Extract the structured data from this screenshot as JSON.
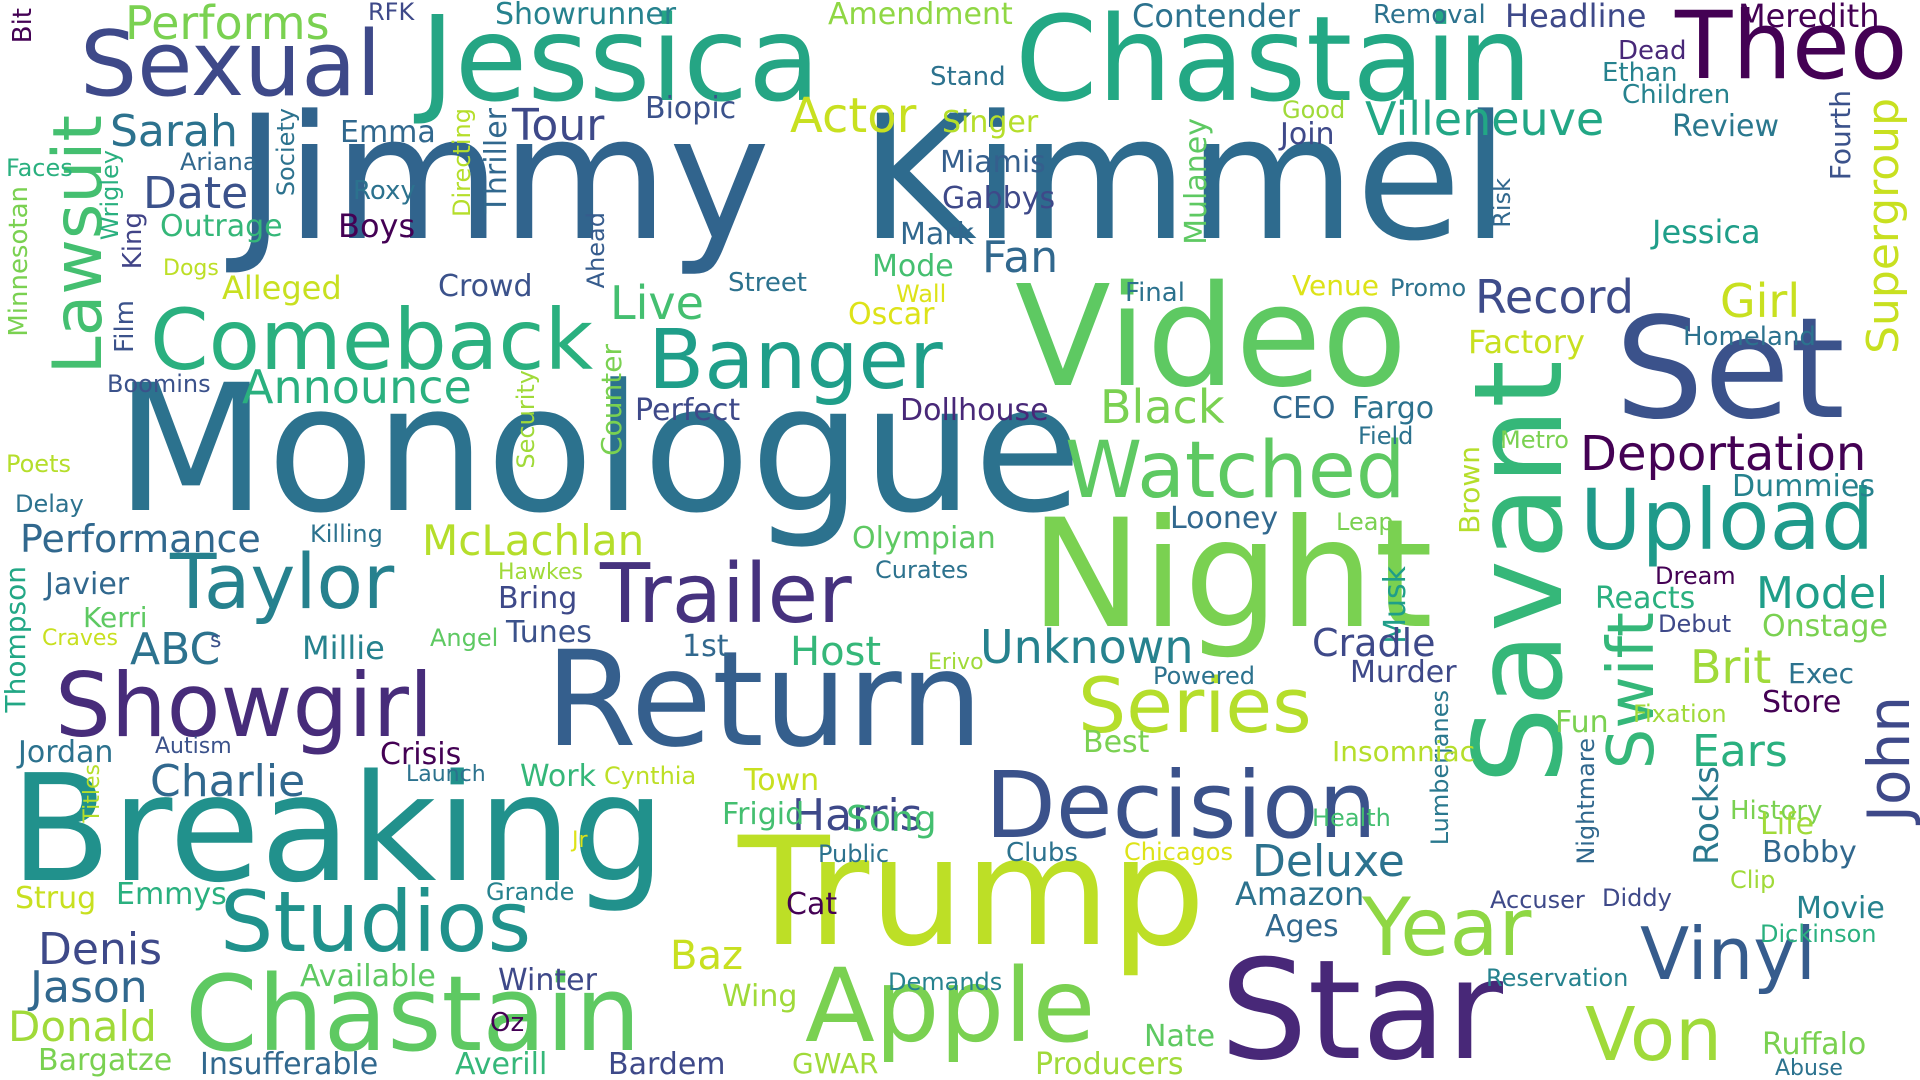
{
  "word_cloud": {
    "background": "#ffffff",
    "palette": "viridis",
    "words": [
      {
        "text": "Jimmy",
        "color": "#31648d"
      },
      {
        "text": "Kimmel",
        "color": "#2e6b8e"
      },
      {
        "text": "Jessica",
        "color": "#25a584"
      },
      {
        "text": "Chastain",
        "color": "#23a884"
      },
      {
        "text": "Theo",
        "color": "#440154"
      },
      {
        "text": "Sexual",
        "color": "#3e4989"
      },
      {
        "text": "Monologue",
        "color": "#2c728e"
      },
      {
        "text": "Video",
        "color": "#5ec962"
      },
      {
        "text": "Set",
        "color": "#3b528b"
      },
      {
        "text": "Night",
        "color": "#7ad151"
      },
      {
        "text": "Return",
        "color": "#355f8d"
      },
      {
        "text": "Breaking",
        "color": "#21918c"
      },
      {
        "text": "Trump",
        "color": "#bddf26"
      },
      {
        "text": "Star",
        "color": "#482878"
      },
      {
        "text": "Savant",
        "color": "#35b779"
      },
      {
        "text": "Apple",
        "color": "#7ad151"
      },
      {
        "text": "Chastain",
        "color": "#5ec962"
      },
      {
        "text": "Showgirl",
        "color": "#472c7a"
      },
      {
        "text": "Decision",
        "color": "#3b528b"
      },
      {
        "text": "Comeback",
        "color": "#2ab07f"
      },
      {
        "text": "Banger",
        "color": "#1f9e89"
      },
      {
        "text": "Watched",
        "color": "#5ec962"
      },
      {
        "text": "Upload",
        "color": "#1f9a8a"
      },
      {
        "text": "Lawsuit",
        "color": "#44bf70"
      },
      {
        "text": "Trailer",
        "color": "#46327e"
      },
      {
        "text": "Taylor",
        "color": "#26818e"
      },
      {
        "text": "Studios",
        "color": "#20928c"
      },
      {
        "text": "Series",
        "color": "#b5de2b"
      },
      {
        "text": "Swift",
        "color": "#35b779"
      },
      {
        "text": "John",
        "color": "#3e4989"
      },
      {
        "text": "Vinyl",
        "color": "#365c8d"
      },
      {
        "text": "Year",
        "color": "#8fd744"
      },
      {
        "text": "Von",
        "color": "#9fda3a"
      },
      {
        "text": "Deportation",
        "color": "#440154"
      },
      {
        "text": "Record",
        "color": "#3e4c8a"
      },
      {
        "text": "Supergroup",
        "color": "#c8e020"
      },
      {
        "text": "Villeneuve",
        "color": "#22a785"
      },
      {
        "text": "Performs",
        "color": "#7ad151"
      },
      {
        "text": "RFK",
        "color": "#3e4989"
      },
      {
        "text": "Showrunner",
        "color": "#26828e"
      },
      {
        "text": "Amendment",
        "color": "#8fd744"
      },
      {
        "text": "Contender",
        "color": "#2c728e"
      },
      {
        "text": "Removal",
        "color": "#2c728e"
      },
      {
        "text": "Headline",
        "color": "#3e4989"
      },
      {
        "text": "Meredith",
        "color": "#440154"
      },
      {
        "text": "Bit",
        "color": "#440154"
      },
      {
        "text": "Stand",
        "color": "#2c728e"
      },
      {
        "text": "Dead",
        "color": "#482878"
      },
      {
        "text": "Ethan",
        "color": "#26828e"
      },
      {
        "text": "Children",
        "color": "#26828e"
      },
      {
        "text": "Sarah",
        "color": "#2c728e"
      },
      {
        "text": "Emma",
        "color": "#31688e"
      },
      {
        "text": "Tour",
        "color": "#3e4989"
      },
      {
        "text": "Biopic",
        "color": "#3b528b"
      },
      {
        "text": "Actor",
        "color": "#c8e020"
      },
      {
        "text": "Singer",
        "color": "#b5de2b"
      },
      {
        "text": "Good",
        "color": "#a0da39"
      },
      {
        "text": "Join",
        "color": "#3e4989"
      },
      {
        "text": "Review",
        "color": "#2a788e"
      },
      {
        "text": "Fourth",
        "color": "#3b528b"
      },
      {
        "text": "Faces",
        "color": "#2ab07f"
      },
      {
        "text": "Ariana",
        "color": "#31688e"
      },
      {
        "text": "Society",
        "color": "#2c728e"
      },
      {
        "text": "Date",
        "color": "#3b528b"
      },
      {
        "text": "Roxy",
        "color": "#2c728e"
      },
      {
        "text": "Miamis",
        "color": "#355f8d"
      },
      {
        "text": "Mulaney",
        "color": "#5ec962"
      },
      {
        "text": "Risk",
        "color": "#31688e"
      },
      {
        "text": "Jessica",
        "color": "#1f9e89"
      },
      {
        "text": "Outrage",
        "color": "#35b779"
      },
      {
        "text": "Boys",
        "color": "#440154"
      },
      {
        "text": "Directing",
        "color": "#b5de2b"
      },
      {
        "text": "Thriller",
        "color": "#31688e"
      },
      {
        "text": "Gabbys",
        "color": "#3e4989"
      },
      {
        "text": "Wrigley",
        "color": "#2ab07f"
      },
      {
        "text": "King",
        "color": "#414487"
      },
      {
        "text": "Mark",
        "color": "#31688e"
      },
      {
        "text": "Ahead",
        "color": "#365c8d"
      },
      {
        "text": "Minnesotan",
        "color": "#7ad151"
      },
      {
        "text": "Dogs",
        "color": "#bddf26"
      },
      {
        "text": "Alleged",
        "color": "#c8e020"
      },
      {
        "text": "Mode",
        "color": "#44bf70"
      },
      {
        "text": "Fan",
        "color": "#31688e"
      },
      {
        "text": "Crowd",
        "color": "#3b528b"
      },
      {
        "text": "Street",
        "color": "#2c728e"
      },
      {
        "text": "Final",
        "color": "#2c728e"
      },
      {
        "text": "Venue",
        "color": "#dde318"
      },
      {
        "text": "Promo",
        "color": "#2c728e"
      },
      {
        "text": "Girl",
        "color": "#c8e020"
      },
      {
        "text": "Film",
        "color": "#3b528b"
      },
      {
        "text": "Live",
        "color": "#44bf70"
      },
      {
        "text": "Wall",
        "color": "#dde318"
      },
      {
        "text": "Oscar",
        "color": "#dde318"
      },
      {
        "text": "Homeland",
        "color": "#2c728e"
      },
      {
        "text": "Factory",
        "color": "#c8e020"
      },
      {
        "text": "Boomins",
        "color": "#3b528b"
      },
      {
        "text": "Announce",
        "color": "#2ab07f"
      },
      {
        "text": "Security",
        "color": "#a0da39"
      },
      {
        "text": "Counter",
        "color": "#7ad151"
      },
      {
        "text": "Perfect",
        "color": "#3e4989"
      },
      {
        "text": "Dollhouse",
        "color": "#482878"
      },
      {
        "text": "Black",
        "color": "#7ad151"
      },
      {
        "text": "CEO",
        "color": "#31688e"
      },
      {
        "text": "Fargo",
        "color": "#2c728e"
      },
      {
        "text": "Field",
        "color": "#2c728e"
      },
      {
        "text": "Metro",
        "color": "#7ad151"
      },
      {
        "text": "Poets",
        "color": "#b5de2b"
      },
      {
        "text": "Brown",
        "color": "#b5de2b"
      },
      {
        "text": "Delay",
        "color": "#2c728e"
      },
      {
        "text": "Dummies",
        "color": "#26828e"
      },
      {
        "text": "Performance",
        "color": "#31688e"
      },
      {
        "text": "Killing",
        "color": "#2c728e"
      },
      {
        "text": "McLachlan",
        "color": "#b5de2b"
      },
      {
        "text": "Olympian",
        "color": "#5ec962"
      },
      {
        "text": "Looney",
        "color": "#31688e"
      },
      {
        "text": "Leap",
        "color": "#7ad151"
      },
      {
        "text": "Thompson",
        "color": "#22a785"
      },
      {
        "text": "Javier",
        "color": "#31688e"
      },
      {
        "text": "Hawkes",
        "color": "#a0da39"
      },
      {
        "text": "Curates",
        "color": "#2c728e"
      },
      {
        "text": "Dream",
        "color": "#440154"
      },
      {
        "text": "Kerri",
        "color": "#5ec962"
      },
      {
        "text": "Bring",
        "color": "#3e4989"
      },
      {
        "text": "Musk",
        "color": "#1f9e89"
      },
      {
        "text": "Reacts",
        "color": "#2ab07f"
      },
      {
        "text": "Model",
        "color": "#1f9e89"
      },
      {
        "text": "Craves",
        "color": "#c8e020"
      },
      {
        "text": "Angel",
        "color": "#5ec962"
      },
      {
        "text": "Tunes",
        "color": "#3b528b"
      },
      {
        "text": "Debut",
        "color": "#3e4989"
      },
      {
        "text": "Onstage",
        "color": "#7ad151"
      },
      {
        "text": "ABC",
        "color": "#2c728e"
      },
      {
        "text": "s",
        "color": "#3b528b"
      },
      {
        "text": "Millie",
        "color": "#26828e"
      },
      {
        "text": "1st",
        "color": "#31688e"
      },
      {
        "text": "Host",
        "color": "#35b779"
      },
      {
        "text": "Erivo",
        "color": "#a0da39"
      },
      {
        "text": "Unknown",
        "color": "#26828e"
      },
      {
        "text": "Cradle",
        "color": "#3e4989"
      },
      {
        "text": "Brit",
        "color": "#a0da39"
      },
      {
        "text": "Exec",
        "color": "#2c728e"
      },
      {
        "text": "Powered",
        "color": "#2c728e"
      },
      {
        "text": "Murder",
        "color": "#3e4989"
      },
      {
        "text": "Lumberjanes",
        "color": "#2a788e"
      },
      {
        "text": "Store",
        "color": "#440154"
      },
      {
        "text": "Fixation",
        "color": "#a0da39"
      },
      {
        "text": "Fun",
        "color": "#7ad151"
      },
      {
        "text": "Jordan",
        "color": "#2c728e"
      },
      {
        "text": "Autism",
        "color": "#3b528b"
      },
      {
        "text": "Crisis",
        "color": "#440154"
      },
      {
        "text": "Best",
        "color": "#2ab07f"
      },
      {
        "text": "Insomniac",
        "color": "#7ad151"
      },
      {
        "text": "Ears",
        "color": "#b5de2b"
      },
      {
        "text": "Charlie",
        "color": "#31688e"
      },
      {
        "text": "Launch",
        "color": "#2c728e"
      },
      {
        "text": "Work",
        "color": "#35b779"
      },
      {
        "text": "Cynthia",
        "color": "#bddf26"
      },
      {
        "text": "Town",
        "color": "#c8e020"
      },
      {
        "text": "Harris",
        "color": "#3e4989"
      },
      {
        "text": "Health",
        "color": "#44bf70"
      },
      {
        "text": "Nightmare",
        "color": "#31688e"
      },
      {
        "text": "History",
        "color": "#7ad151"
      },
      {
        "text": "Rocks",
        "color": "#2a788e"
      },
      {
        "text": "Titles",
        "color": "#b5de2b"
      },
      {
        "text": "Frigid",
        "color": "#44bf70"
      },
      {
        "text": "Song",
        "color": "#44bf70"
      },
      {
        "text": "Life",
        "color": "#a0da39"
      },
      {
        "text": "Jr",
        "color": "#dde318"
      },
      {
        "text": "Public",
        "color": "#2c728e"
      },
      {
        "text": "Clubs",
        "color": "#2c728e"
      },
      {
        "text": "Chicagos",
        "color": "#dde318"
      },
      {
        "text": "Deluxe",
        "color": "#2c728e"
      },
      {
        "text": "Bobby",
        "color": "#31688e"
      },
      {
        "text": "Clip",
        "color": "#a0da39"
      },
      {
        "text": "Strug",
        "color": "#c8e020"
      },
      {
        "text": "Emmys",
        "color": "#2ab07f"
      },
      {
        "text": "Grande",
        "color": "#26828e"
      },
      {
        "text": "Cat",
        "color": "#440154"
      },
      {
        "text": "Amazon",
        "color": "#2c728e"
      },
      {
        "text": "Accuser",
        "color": "#3e4989"
      },
      {
        "text": "Diddy",
        "color": "#3e4989"
      },
      {
        "text": "Movie",
        "color": "#26828e"
      },
      {
        "text": "Ages",
        "color": "#31688e"
      },
      {
        "text": "Dickinson",
        "color": "#2ab07f"
      },
      {
        "text": "Denis",
        "color": "#3e4989"
      },
      {
        "text": "Baz",
        "color": "#c8e020"
      },
      {
        "text": "Jason",
        "color": "#31688e"
      },
      {
        "text": "Available",
        "color": "#5ec962"
      },
      {
        "text": "Winter",
        "color": "#3e4989"
      },
      {
        "text": "Demands",
        "color": "#26828e"
      },
      {
        "text": "Reservation",
        "color": "#26828e"
      },
      {
        "text": "Wing",
        "color": "#a0da39"
      },
      {
        "text": "Donald",
        "color": "#a0da39"
      },
      {
        "text": "Oz",
        "color": "#440154"
      },
      {
        "text": "Nate",
        "color": "#5ec962"
      },
      {
        "text": "Ruffalo",
        "color": "#7ad151"
      },
      {
        "text": "Bargatze",
        "color": "#7ad151"
      },
      {
        "text": "Insufferable",
        "color": "#31688e"
      },
      {
        "text": "Averill",
        "color": "#35b779"
      },
      {
        "text": "Bardem",
        "color": "#3e4989"
      },
      {
        "text": "GWAR",
        "color": "#a0da39"
      },
      {
        "text": "Producers",
        "color": "#a0da39"
      },
      {
        "text": "Abuse",
        "color": "#2c728e"
      }
    ]
  }
}
